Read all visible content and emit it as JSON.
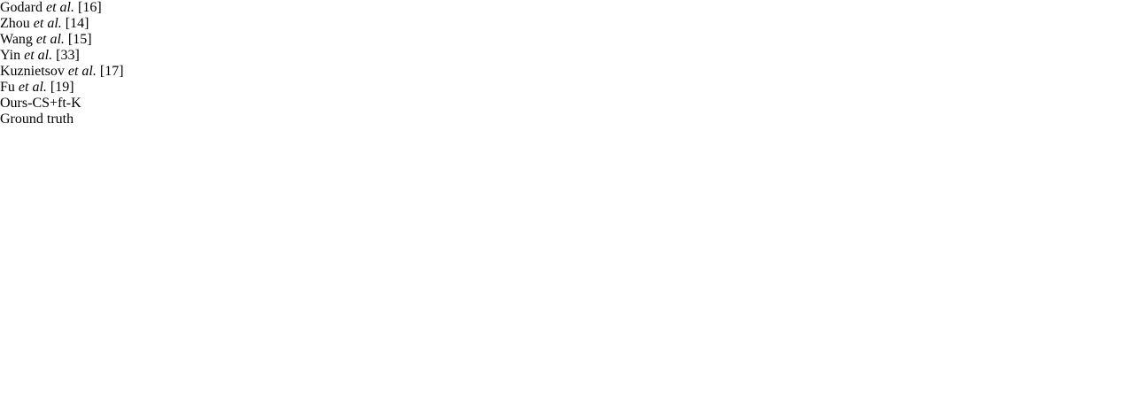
{
  "figure": {
    "captions": [
      {
        "pre": "Godard",
        "em": "et al.",
        "post": "[16]"
      },
      {
        "pre": "Zhou",
        "em": "et al.",
        "post": "[14]"
      },
      {
        "pre": "Wang",
        "em": "et al.",
        "post": "[15]"
      },
      {
        "pre": "Yin",
        "em": "et al.",
        "post": "[33]"
      },
      {
        "pre": "Kuznietsov",
        "em": "et al.",
        "post": "[17]"
      },
      {
        "pre": "Fu",
        "em": "et al.",
        "post": "[19]"
      },
      {
        "text": "Ours-CS+ft-K"
      },
      {
        "text": "Ground truth"
      }
    ]
  }
}
